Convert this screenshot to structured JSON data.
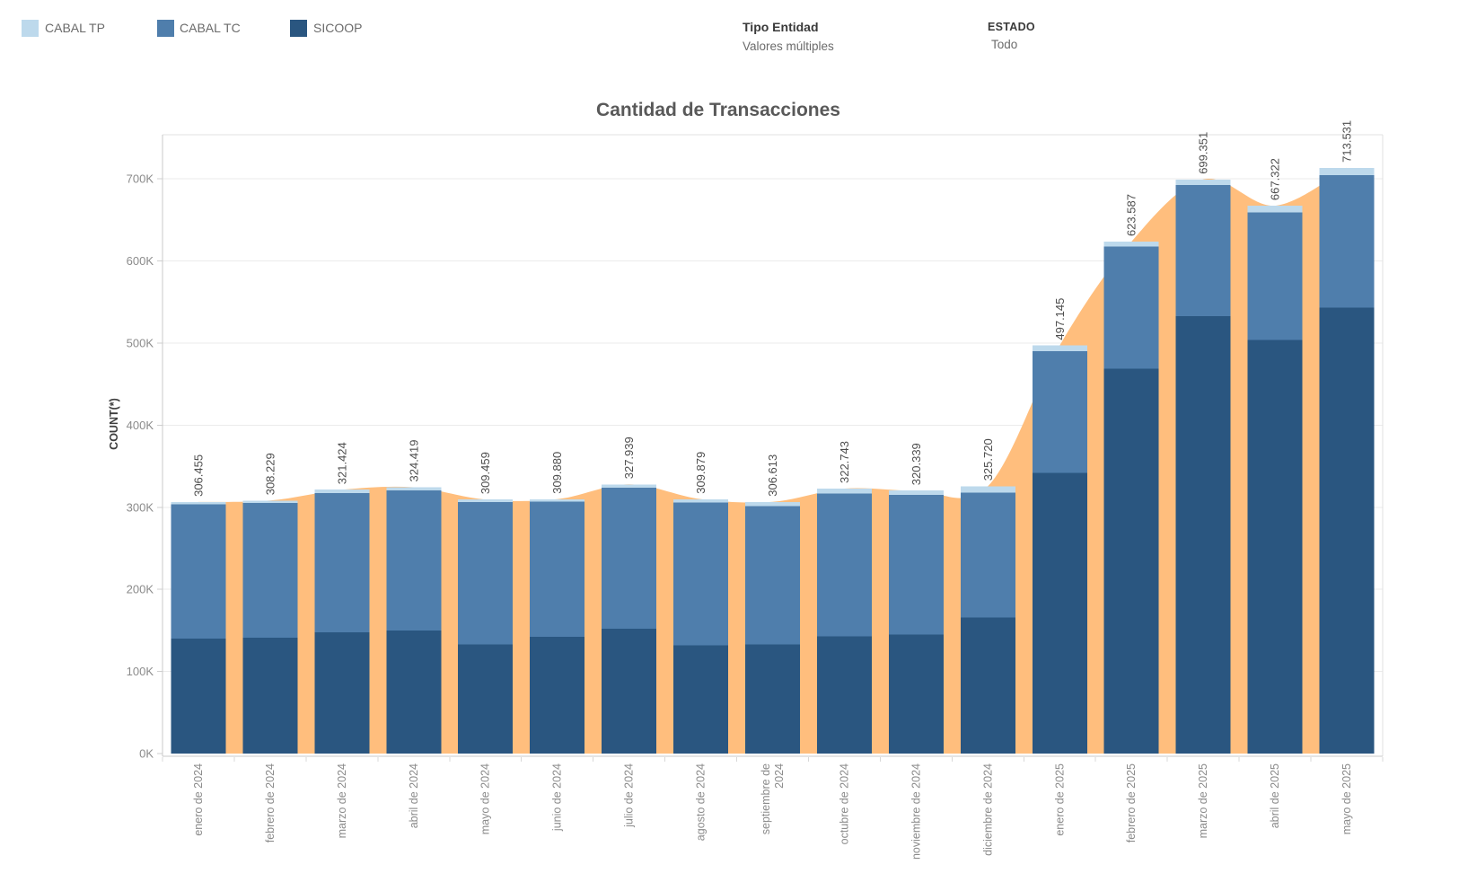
{
  "header": {
    "legend": [
      {
        "label": "CABAL TP",
        "color": "#BDD9EC"
      },
      {
        "label": "CABAL TC",
        "color": "#4F7EAC"
      },
      {
        "label": "SICOOP",
        "color": "#2A5680"
      }
    ],
    "filters": [
      {
        "title": "Tipo Entidad",
        "value": "Valores múltiples"
      },
      {
        "title": "ESTADO",
        "value": "Todo"
      }
    ]
  },
  "chart_data": {
    "type": "bar",
    "stacked": true,
    "title": "Cantidad de Transacciones",
    "xlabel": "",
    "ylabel": "COUNT(*)",
    "grid": "horizontal",
    "legend_position": "top-left",
    "categories": [
      "enero de 2024",
      "febrero de 2024",
      "marzo de 2024",
      "abril de 2024",
      "mayo de 2024",
      "junio de 2024",
      "julio de 2024",
      "agosto de 2024",
      "septiembre de 2024",
      "octubre de 2024",
      "noviembre de 2024",
      "diciembre de 2024",
      "enero de 2025",
      "febrero de 2025",
      "marzo de 2025",
      "abril de 2025",
      "mayo de 2025"
    ],
    "category_label_lines": [
      [
        "enero de 2024"
      ],
      [
        "febrero de 2024"
      ],
      [
        "marzo de 2024"
      ],
      [
        "abril de 2024"
      ],
      [
        "mayo de 2024"
      ],
      [
        "junio de 2024"
      ],
      [
        "julio de 2024"
      ],
      [
        "agosto de 2024"
      ],
      [
        "septiembre de",
        "2024"
      ],
      [
        "octubre de 2024"
      ],
      [
        "noviembre de 2024"
      ],
      [
        "diciembre de 2024"
      ],
      [
        "enero de 2025"
      ],
      [
        "febrero de 2025"
      ],
      [
        "marzo de 2025"
      ],
      [
        "abril de 2025"
      ],
      [
        "mayo de 2025"
      ]
    ],
    "series": [
      {
        "name": "SICOOP",
        "color": "#2A5680",
        "values": [
          140000,
          141000,
          148000,
          150000,
          133000,
          142000,
          152000,
          132000,
          133000,
          143000,
          145000,
          166000,
          342000,
          469000,
          533000,
          504000,
          543000
        ]
      },
      {
        "name": "CABAL TC",
        "color": "#4F7EAC",
        "values": [
          163455,
          164229,
          169424,
          170419,
          173459,
          164880,
          171939,
          173879,
          168613,
          173743,
          170339,
          151720,
          148145,
          148587,
          159351,
          155322,
          161531
        ]
      },
      {
        "name": "CABAL TP",
        "color": "#BDD9EC",
        "values": [
          3000,
          3000,
          4000,
          4000,
          3000,
          3000,
          4000,
          4000,
          5000,
          6000,
          5000,
          8000,
          7000,
          6000,
          7000,
          8000,
          9000
        ]
      }
    ],
    "totals": [
      306455,
      308229,
      321424,
      324419,
      309459,
      309880,
      327939,
      309879,
      306613,
      322743,
      320339,
      325720,
      497145,
      623587,
      699351,
      667322,
      713531
    ],
    "total_labels": [
      "306.455",
      "308.229",
      "321.424",
      "324.419",
      "309.459",
      "309.880",
      "327.939",
      "309.879",
      "306.613",
      "322.743",
      "320.339",
      "325.720",
      "497.145",
      "623.587",
      "699.351",
      "667.322",
      "713.531"
    ],
    "area_series": {
      "name": "total-area",
      "color": "#FFBE7D"
    },
    "y_ticks": [
      "0K",
      "100K",
      "200K",
      "300K",
      "400K",
      "500K",
      "600K",
      "700K"
    ],
    "y_tick_values": [
      0,
      100000,
      200000,
      300000,
      400000,
      500000,
      600000,
      700000
    ],
    "ylim": [
      0,
      754000
    ]
  },
  "colors": {
    "grid": "#EBEBEB",
    "axis_line": "#C9C9C9",
    "border_light": "#E0E0E0",
    "tick": "#CFCFCF",
    "x_tick": "#D8D8D8",
    "axis_text": "#8B8B8B",
    "value_text": "#4D4D4D",
    "ylabel_text": "#3D3D3D",
    "title_text": "#595959"
  }
}
